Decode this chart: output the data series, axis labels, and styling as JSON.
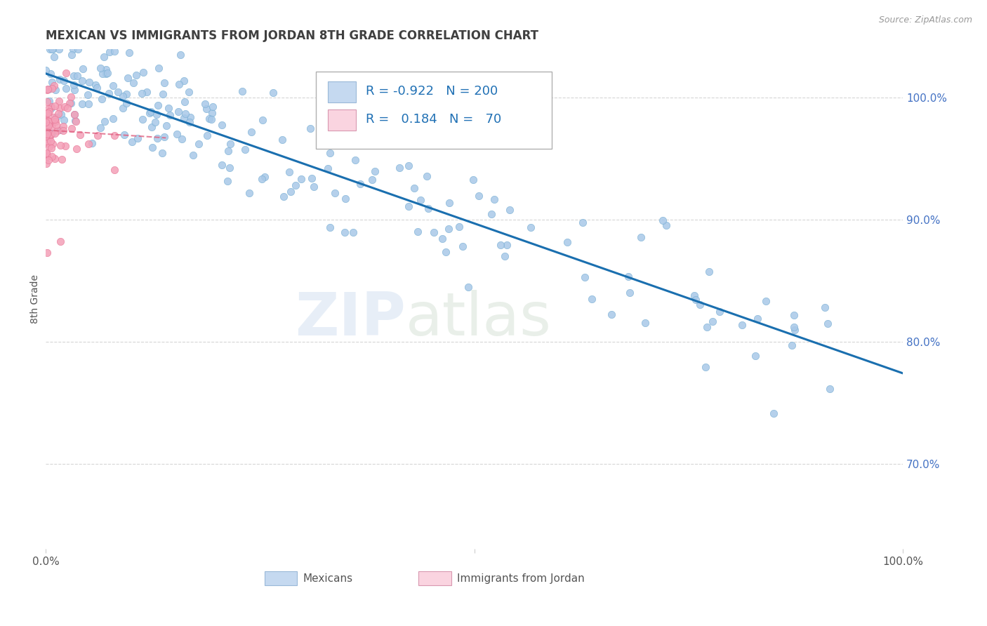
{
  "title": "MEXICAN VS IMMIGRANTS FROM JORDAN 8TH GRADE CORRELATION CHART",
  "source": "Source: ZipAtlas.com",
  "ylabel": "8th Grade",
  "right_yticks": [
    0.7,
    0.8,
    0.9,
    1.0
  ],
  "right_yticklabels": [
    "70.0%",
    "80.0%",
    "90.0%",
    "100.0%"
  ],
  "blue_color": "#a8c8e8",
  "blue_edge_color": "#7ab0d4",
  "pink_color": "#f4a0b8",
  "pink_edge_color": "#e87898",
  "blue_line_color": "#1a6faf",
  "pink_line_color": "#e06080",
  "legend_box_blue_color": "#c5d9f0",
  "legend_box_pink_color": "#fad4e0",
  "R_blue": -0.922,
  "N_blue": 200,
  "R_pink": 0.184,
  "N_pink": 70,
  "watermark_zip": "ZIP",
  "watermark_atlas": "atlas",
  "background_color": "#ffffff",
  "grid_color": "#cccccc",
  "title_color": "#404040",
  "axis_label_color": "#555555",
  "legend_text_color": "#2171b5",
  "right_axis_color": "#4472c4",
  "ylim_min": 0.63,
  "ylim_max": 1.04,
  "xlim_min": 0.0,
  "xlim_max": 1.0
}
